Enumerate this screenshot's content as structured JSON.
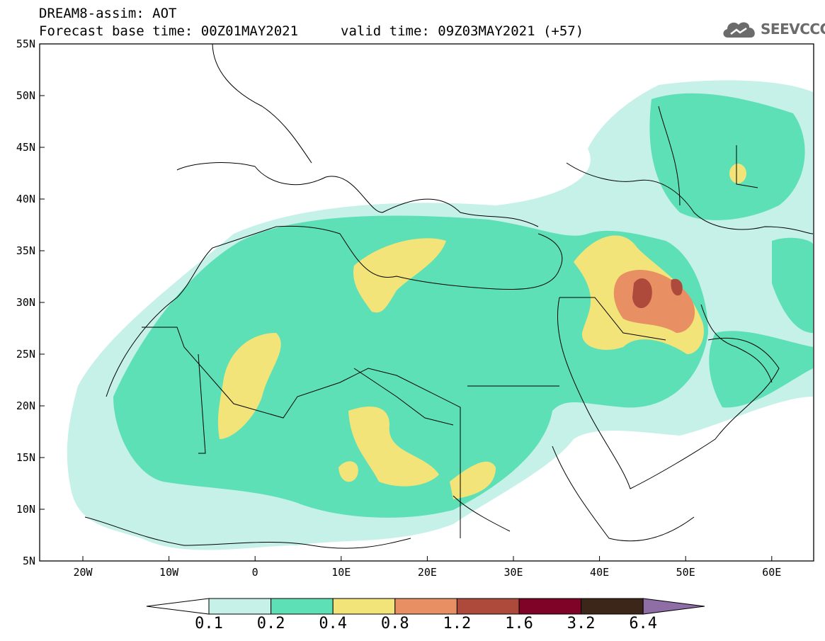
{
  "header": {
    "line1": "DREAM8-assim: AOT",
    "line2_left": "Forecast base time: 00Z01MAY2021",
    "line2_right": "valid time: 09Z03MAY2021 (+57)"
  },
  "logo": {
    "text": "SEEVCCC",
    "icon": "cloud-icon"
  },
  "axes": {
    "lon_labels": [
      "20W",
      "10W",
      "0",
      "10E",
      "20E",
      "30E",
      "40E",
      "50E",
      "60E"
    ],
    "lat_labels": [
      "55N",
      "50N",
      "45N",
      "40N",
      "35N",
      "30N",
      "25N",
      "20N",
      "15N",
      "10N",
      "5N"
    ]
  },
  "colorbar": {
    "labels": [
      "0.1",
      "0.2",
      "0.4",
      "0.8",
      "1.2",
      "1.6",
      "3.2",
      "6.4"
    ],
    "colors": [
      "#c6f1e8",
      "#5ee0b6",
      "#f3e47a",
      "#e88f63",
      "#ad4a3c",
      "#7e0327",
      "#3b2619",
      "#8f6ea6"
    ]
  },
  "field_colors": {
    "lt": "#c6f1e8",
    "md": "#5ee0b6",
    "yl": "#f3e47a",
    "or": "#e88f63",
    "rd": "#ad4a3c"
  }
}
